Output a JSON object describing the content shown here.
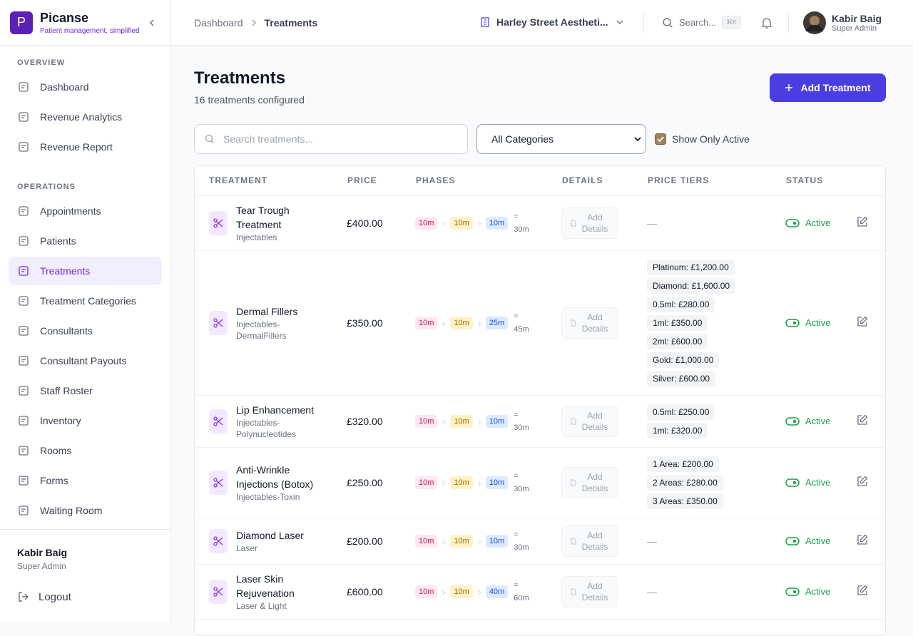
{
  "brand": {
    "logo": "P",
    "name": "Picanse",
    "tagline": "Patient management, simplified"
  },
  "sidebar": {
    "sections": [
      {
        "title": "OVERVIEW",
        "items": [
          {
            "label": "Dashboard"
          },
          {
            "label": "Revenue Analytics"
          },
          {
            "label": "Revenue Report"
          }
        ]
      },
      {
        "title": "OPERATIONS",
        "items": [
          {
            "label": "Appointments"
          },
          {
            "label": "Patients"
          },
          {
            "label": "Treatments",
            "active": true
          },
          {
            "label": "Treatment Categories"
          },
          {
            "label": "Consultants"
          },
          {
            "label": "Consultant Payouts"
          },
          {
            "label": "Staff Roster"
          },
          {
            "label": "Inventory"
          },
          {
            "label": "Rooms"
          },
          {
            "label": "Forms"
          },
          {
            "label": "Waiting Room"
          }
        ]
      }
    ],
    "user": {
      "name": "Kabir Baig",
      "role": "Super Admin"
    },
    "logout": "Logout"
  },
  "header": {
    "breadcrumb": [
      "Dashboard",
      "Treatments"
    ],
    "clinic": "Harley Street Aestheti...",
    "search": "Search...",
    "shortcut": "⌘K",
    "user": {
      "name": "Kabir Baig",
      "role": "Super Admin"
    }
  },
  "page": {
    "title": "Treatments",
    "subtitle": "16 treatments configured",
    "add_button": "Add Treatment"
  },
  "filters": {
    "search_placeholder": "Search treatments...",
    "category": "All Categories",
    "show_active": "Show Only Active"
  },
  "table": {
    "columns": [
      "TREATMENT",
      "PRICE",
      "PHASES",
      "DETAILS",
      "PRICE TIERS",
      "STATUS"
    ],
    "total_sign": "=",
    "empty": "—",
    "rows": [
      {
        "name": "Tear Trough Treatment",
        "category": "Injectables",
        "price": "£400.00",
        "phases": [
          "10m",
          "10m",
          "10m"
        ],
        "total": "30m",
        "details": "Add Details",
        "tiers": [],
        "status": "Active"
      },
      {
        "name": "Dermal Fillers",
        "category": "Injectables-DermalFillers",
        "price": "£350.00",
        "phases": [
          "10m",
          "10m",
          "25m"
        ],
        "total": "45m",
        "details": "Add Details",
        "tiers": [
          "Platinum: £1,200.00",
          "Diamond: £1,600.00",
          "0.5ml: £280.00",
          "1ml: £350.00",
          "2ml: £600.00",
          "Gold: £1,000.00",
          "Silver: £600.00"
        ],
        "status": "Active"
      },
      {
        "name": "Lip Enhancement",
        "category": "Injectables-Polynucleotides",
        "price": "£320.00",
        "phases": [
          "10m",
          "10m",
          "10m"
        ],
        "total": "30m",
        "details": "Add Details",
        "tiers": [
          "0.5ml: £250.00",
          "1ml: £320.00"
        ],
        "status": "Active"
      },
      {
        "name": "Anti-Wrinkle Injections (Botox)",
        "category": "Injectables-Toxin",
        "price": "£250.00",
        "phases": [
          "10m",
          "10m",
          "10m"
        ],
        "total": "30m",
        "details": "Add Details",
        "tiers": [
          "1 Area: £200.00",
          "2 Areas: £280.00",
          "3 Areas: £350.00"
        ],
        "status": "Active"
      },
      {
        "name": "Diamond Laser",
        "category": "Laser",
        "price": "£200.00",
        "phases": [
          "10m",
          "10m",
          "10m"
        ],
        "total": "30m",
        "details": "Add Details",
        "tiers": [],
        "status": "Active"
      },
      {
        "name": "Laser Skin Rejuvenation",
        "category": "Laser & Light",
        "price": "£600.00",
        "phases": [
          "10m",
          "10m",
          "40m"
        ],
        "total": "60m",
        "details": "Add Details",
        "tiers": [],
        "status": "Active"
      }
    ]
  }
}
